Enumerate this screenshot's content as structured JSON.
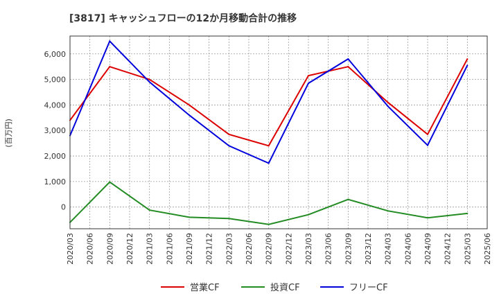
{
  "chart_data": {
    "type": "line",
    "title": "[3817]  キャッシュフローの12か月移動合計の推移",
    "ylabel": "(百万円)",
    "xlabel": "",
    "ylim": [
      -850,
      6700
    ],
    "yticks": [
      0,
      1000,
      2000,
      3000,
      4000,
      5000,
      6000
    ],
    "ytick_labels": [
      "0",
      "1,000",
      "2,000",
      "3,000",
      "4,000",
      "5,000",
      "6,000"
    ],
    "x_ticks": [
      "2020/03",
      "2020/06",
      "2020/09",
      "2020/12",
      "2021/03",
      "2021/06",
      "2021/09",
      "2021/12",
      "2022/03",
      "2022/06",
      "2022/09",
      "2022/12",
      "2023/03",
      "2023/06",
      "2023/09",
      "2023/12",
      "2024/03",
      "2024/06",
      "2024/09",
      "2024/12",
      "2025/03",
      "2025/06"
    ],
    "grid": true,
    "legend_position": "bottom",
    "series": [
      {
        "name": "営業CF",
        "color": "#dd0000",
        "x": [
          "2020/03",
          "2020/09",
          "2021/03",
          "2021/09",
          "2022/03",
          "2022/09",
          "2023/03",
          "2023/09",
          "2024/03",
          "2024/09",
          "2025/03"
        ],
        "values": [
          3400,
          5500,
          5000,
          4000,
          2850,
          2400,
          5150,
          5500,
          4100,
          2850,
          5800
        ]
      },
      {
        "name": "投資CF",
        "color": "#228b22",
        "x": [
          "2020/03",
          "2020/09",
          "2021/03",
          "2021/09",
          "2022/03",
          "2022/09",
          "2023/03",
          "2023/09",
          "2024/03",
          "2024/09",
          "2025/03"
        ],
        "values": [
          -600,
          980,
          -120,
          -400,
          -450,
          -680,
          -300,
          300,
          -150,
          -420,
          -250
        ]
      },
      {
        "name": "フリーCF",
        "color": "#0000dd",
        "x": [
          "2020/03",
          "2020/09",
          "2021/03",
          "2021/09",
          "2022/03",
          "2022/09",
          "2023/03",
          "2023/09",
          "2024/03",
          "2024/09",
          "2025/03"
        ],
        "values": [
          2800,
          6500,
          4900,
          3600,
          2400,
          1720,
          4850,
          5800,
          3950,
          2420,
          5550
        ]
      }
    ]
  }
}
